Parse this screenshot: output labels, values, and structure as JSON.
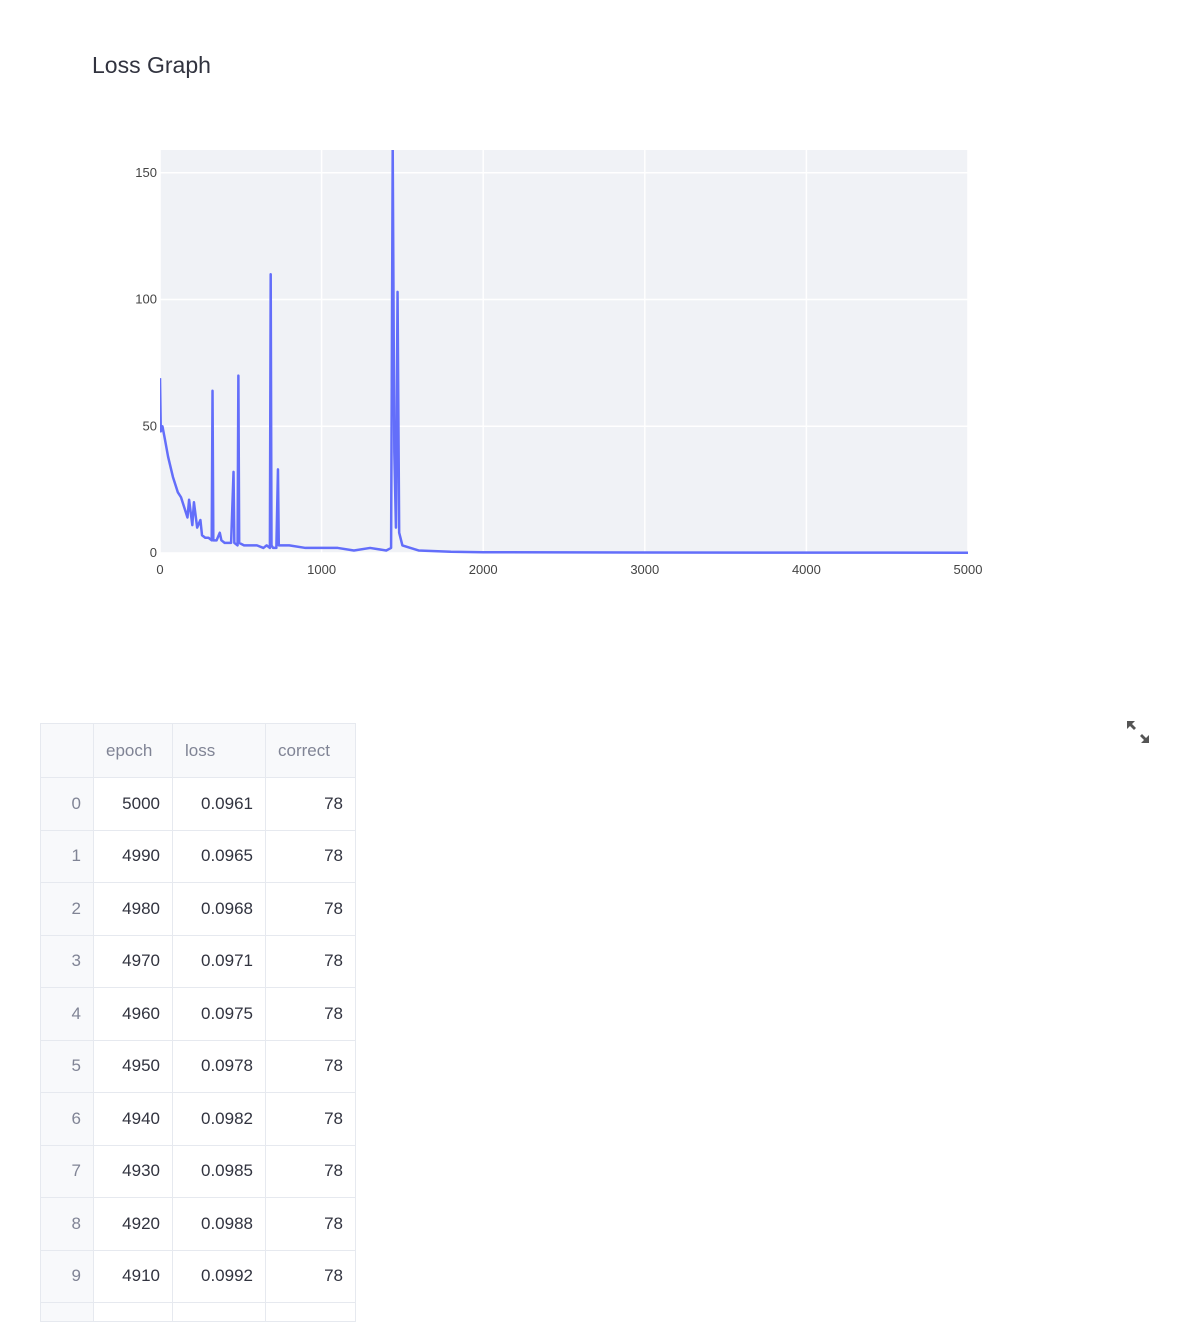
{
  "header": {
    "title": "Loss Graph"
  },
  "chart_data": {
    "type": "line",
    "color": "#636efa",
    "grid": true,
    "x": [
      0,
      5,
      15,
      30,
      50,
      80,
      110,
      130,
      150,
      170,
      180,
      200,
      210,
      230,
      250,
      260,
      280,
      300,
      320,
      325,
      330,
      350,
      370,
      380,
      400,
      440,
      455,
      460,
      480,
      485,
      490,
      520,
      600,
      640,
      660,
      680,
      685,
      690,
      700,
      720,
      730,
      735,
      760,
      800,
      900,
      1000,
      1100,
      1200,
      1300,
      1400,
      1430,
      1440,
      1450,
      1460,
      1470,
      1480,
      1500,
      1600,
      1800,
      2000,
      3000,
      4000,
      5000
    ],
    "y": [
      69,
      48,
      50,
      45,
      38,
      30,
      24,
      22,
      18,
      14,
      21,
      11,
      20,
      10,
      13,
      7,
      6,
      6,
      5,
      64,
      5,
      5,
      8,
      5,
      4,
      4,
      32,
      4,
      3,
      70,
      4,
      3,
      3,
      2,
      3,
      2,
      110,
      3,
      2,
      2,
      33,
      3,
      3,
      3,
      2,
      2,
      2,
      1,
      2,
      1,
      2,
      160,
      40,
      10,
      103,
      8,
      3,
      1,
      0.5,
      0.3,
      0.2,
      0.15,
      0.1
    ],
    "xlim": [
      0,
      5000
    ],
    "ylim": [
      0,
      159
    ],
    "xticks": [
      0,
      1000,
      2000,
      3000,
      4000,
      5000
    ],
    "yticks": [
      0,
      50,
      100,
      150
    ]
  },
  "table": {
    "columns": [
      "epoch",
      "loss",
      "correct"
    ],
    "rows": [
      [
        0,
        5000,
        0.0961,
        78
      ],
      [
        1,
        4990,
        0.0965,
        78
      ],
      [
        2,
        4980,
        0.0968,
        78
      ],
      [
        3,
        4970,
        0.0971,
        78
      ],
      [
        4,
        4960,
        0.0975,
        78
      ],
      [
        5,
        4950,
        0.0978,
        78
      ],
      [
        6,
        4940,
        0.0982,
        78
      ],
      [
        7,
        4930,
        0.0985,
        78
      ],
      [
        8,
        4920,
        0.0988,
        78
      ],
      [
        9,
        4910,
        0.0992,
        78
      ]
    ]
  }
}
